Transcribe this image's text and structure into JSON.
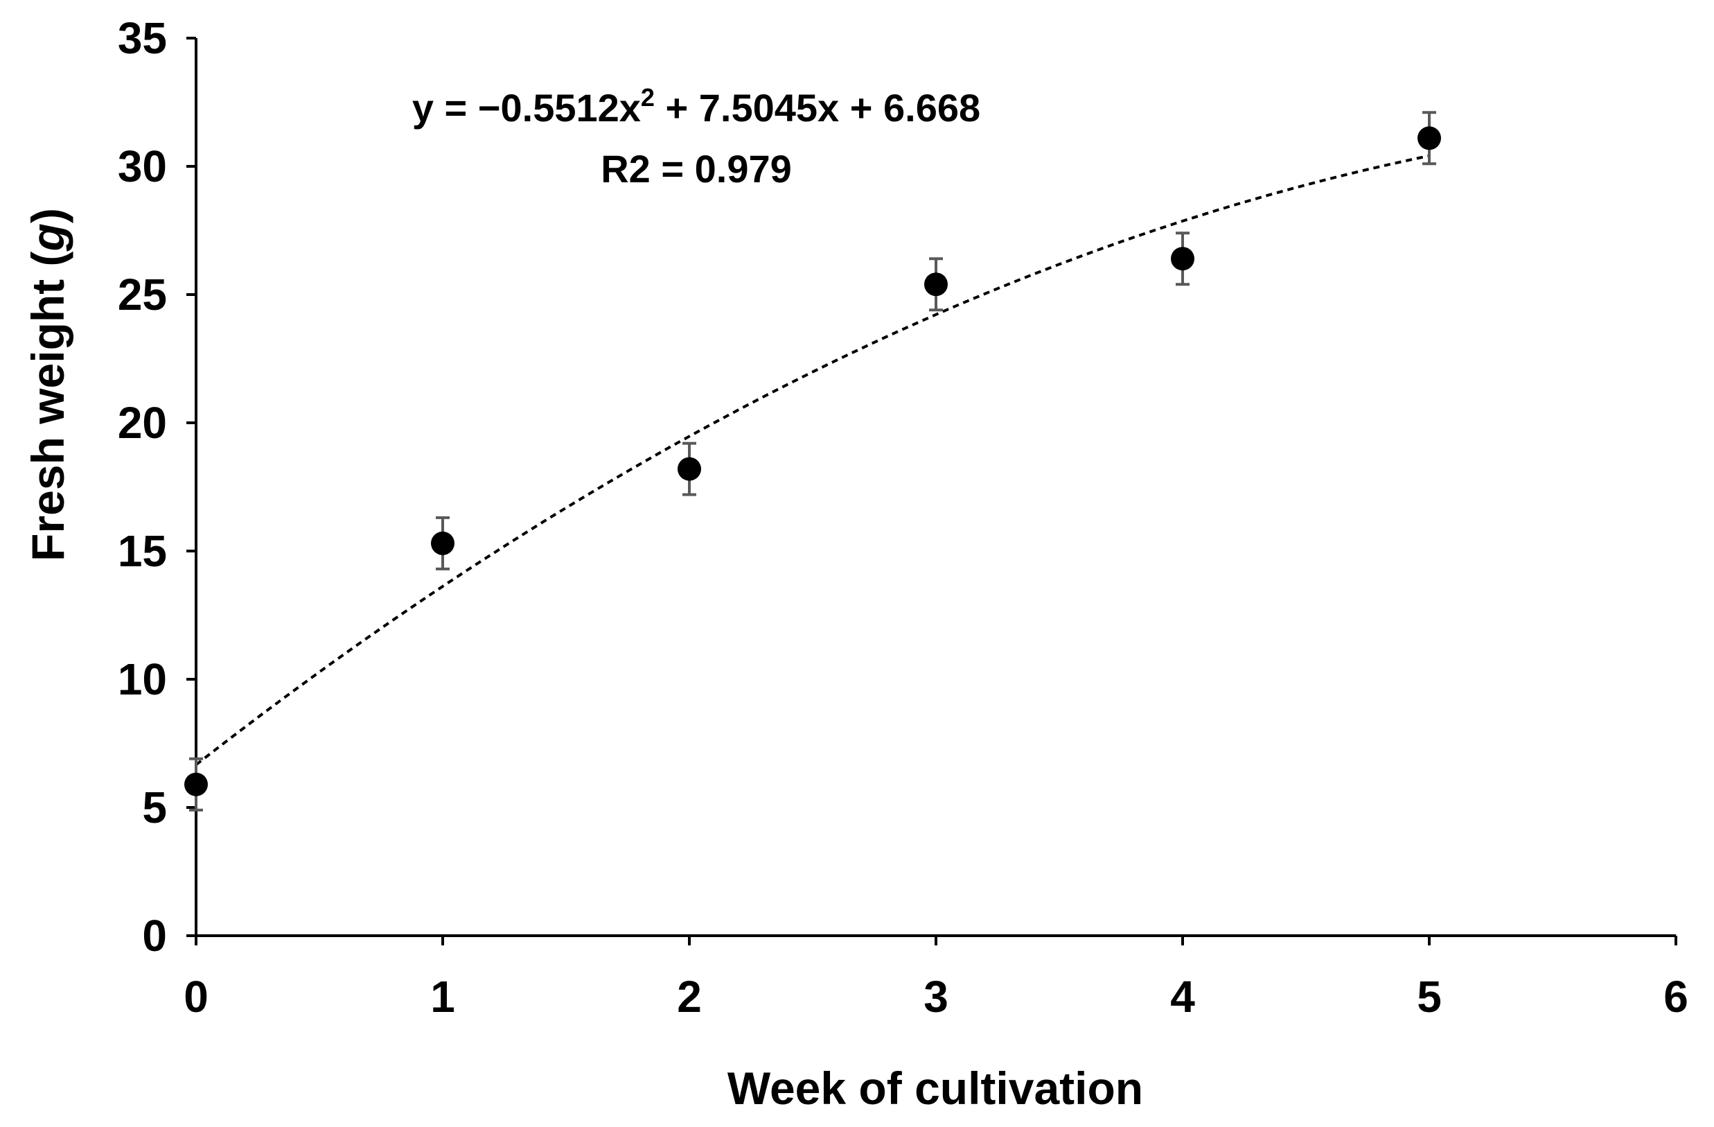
{
  "chart_data": {
    "type": "scatter",
    "title": "",
    "xlabel": "Week of cultivation",
    "ylabel_prefix": "Fresh weight (",
    "ylabel_unit": "g",
    "ylabel_suffix": ")",
    "xlim": [
      0,
      6
    ],
    "ylim": [
      0,
      35
    ],
    "x_ticks": [
      0,
      1,
      2,
      3,
      4,
      5,
      6
    ],
    "y_ticks": [
      0,
      5,
      10,
      15,
      20,
      25,
      30,
      35
    ],
    "grid": false,
    "series": [
      {
        "name": "Fresh weight",
        "x": [
          0,
          1,
          2,
          3,
          4,
          5
        ],
        "y": [
          5.9,
          15.3,
          18.2,
          25.4,
          26.4,
          31.1
        ],
        "error": [
          1.0,
          1.0,
          1.0,
          1.0,
          1.0,
          1.0
        ]
      }
    ],
    "trendline": {
      "type": "polynomial",
      "order": 2,
      "coefficients": [
        -0.5512,
        7.5045,
        6.668
      ],
      "x_range": [
        0,
        5
      ],
      "style": "dashed"
    },
    "annotations": {
      "equation_prefix": "y = −0.5512x",
      "equation_sup": "2",
      "equation_suffix": " + 7.5045x  + 6.668",
      "r2": "R2 = 0.979"
    }
  }
}
